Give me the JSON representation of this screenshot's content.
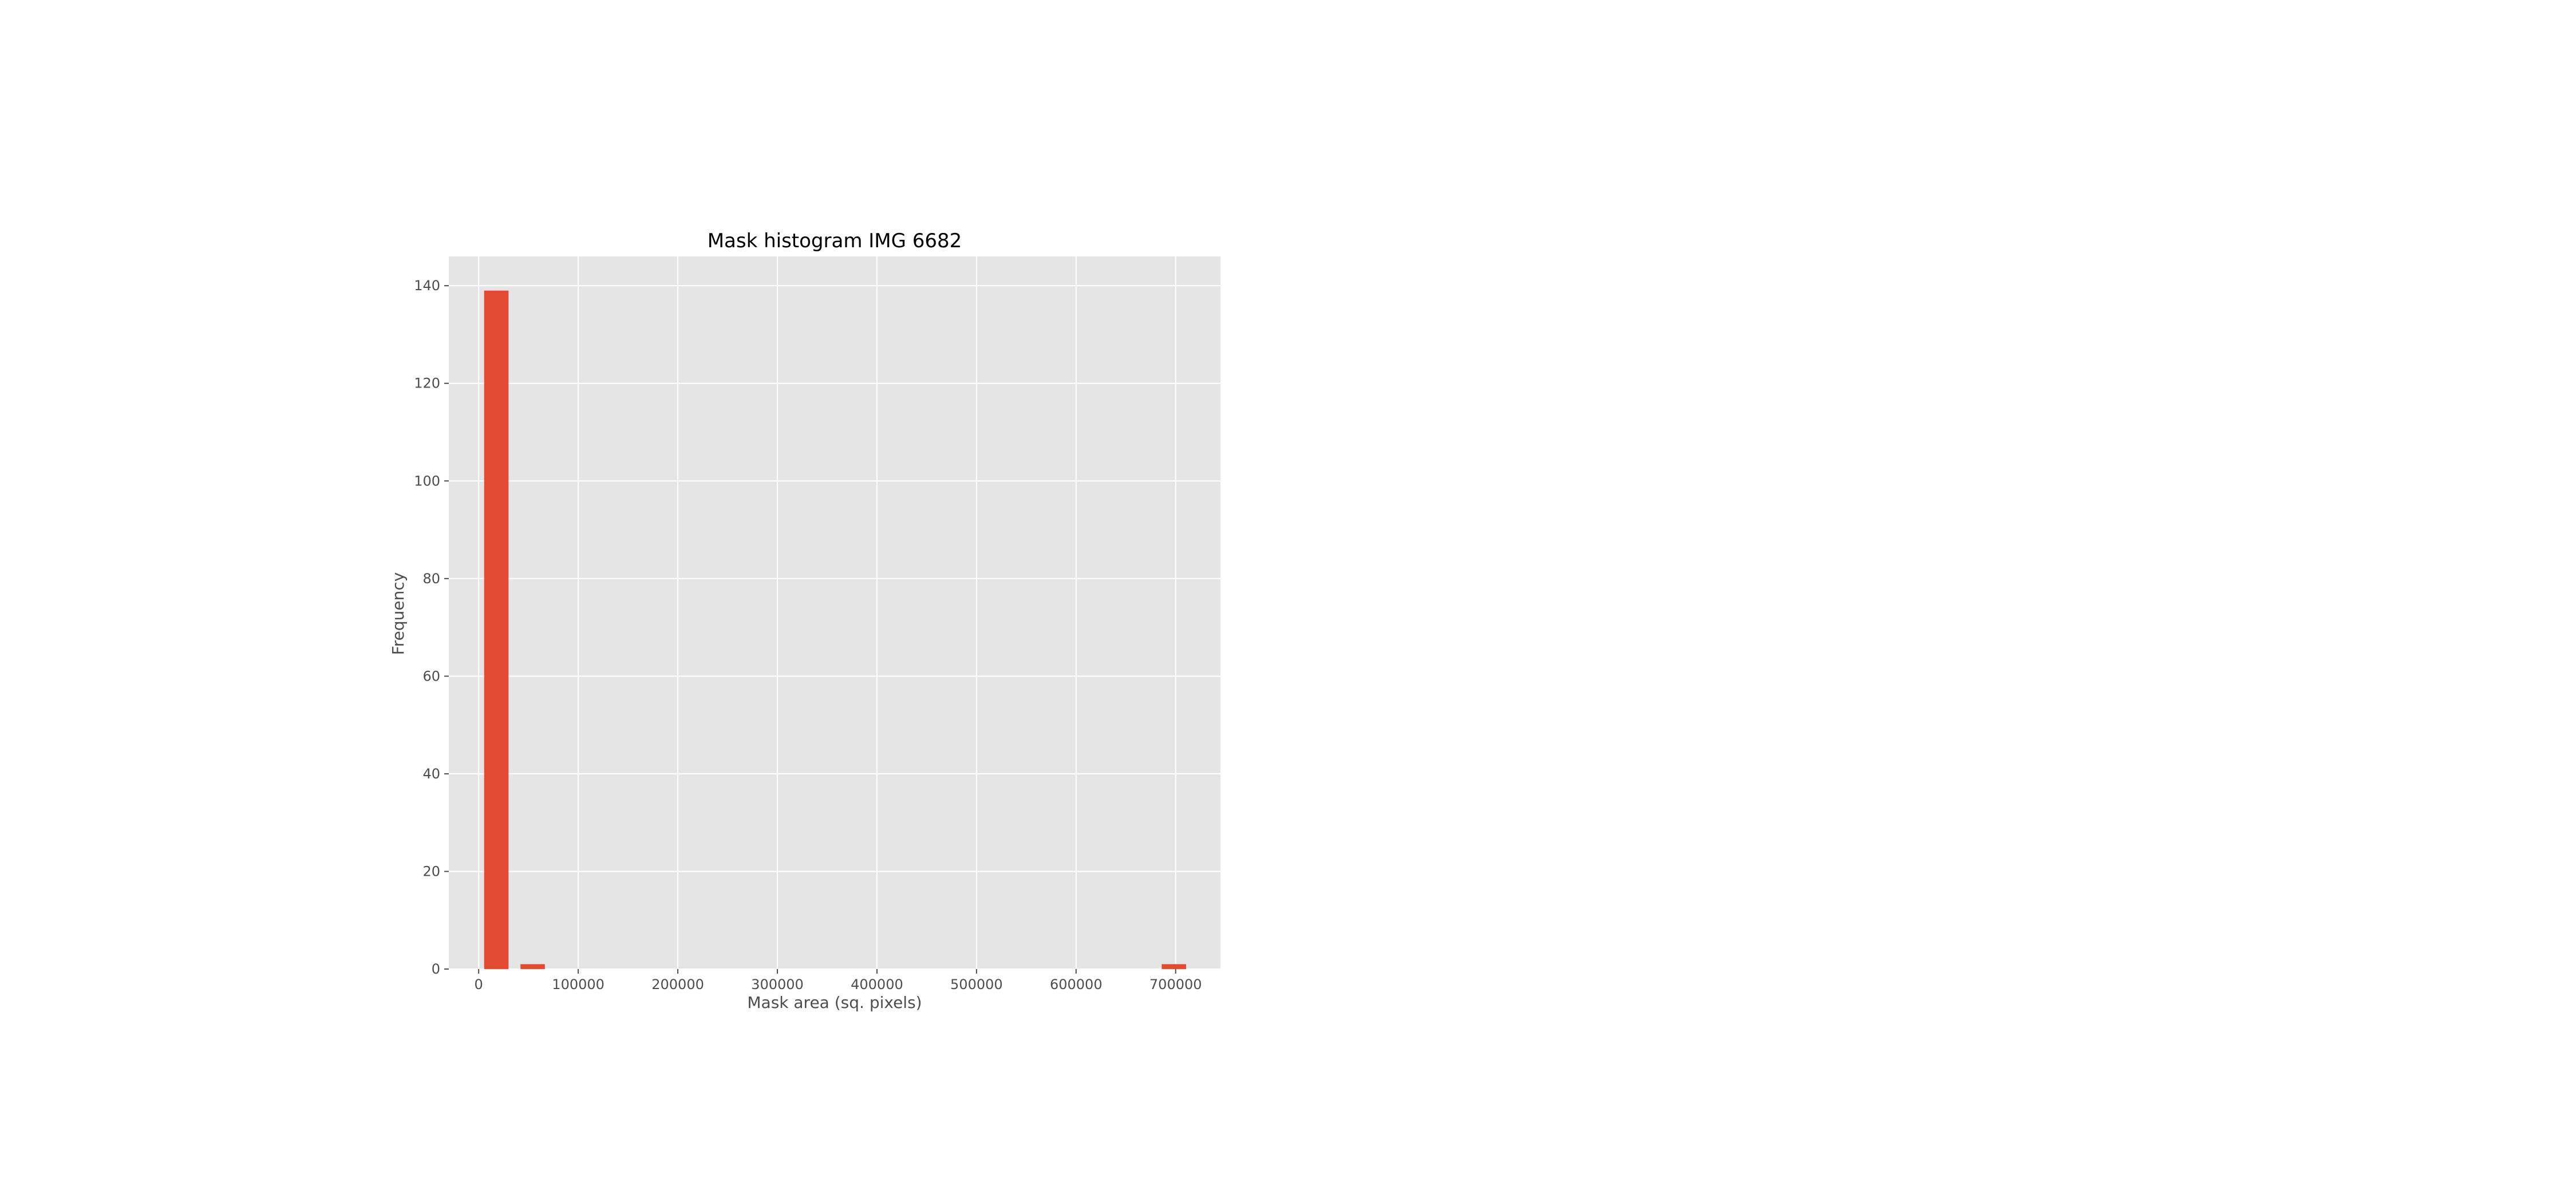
{
  "chart_data": {
    "type": "bar",
    "title": "Mask histogram IMG 6682",
    "xlabel": "Mask area (sq. pixels)",
    "ylabel": "Frequency",
    "xlim": [
      -30000,
      745000
    ],
    "ylim": [
      0,
      146
    ],
    "x_ticks": [
      0,
      100000,
      200000,
      300000,
      400000,
      500000,
      600000,
      700000
    ],
    "x_tick_labels": [
      "0",
      "100000",
      "200000",
      "300000",
      "400000",
      "500000",
      "600000",
      "700000"
    ],
    "y_ticks": [
      0,
      20,
      40,
      60,
      80,
      100,
      120,
      140
    ],
    "y_tick_labels": [
      "0",
      "20",
      "40",
      "60",
      "80",
      "100",
      "120",
      "140"
    ],
    "bars": [
      {
        "x_start": 5500,
        "x_end": 30000,
        "value": 139
      },
      {
        "x_start": 42000,
        "x_end": 66500,
        "value": 1
      },
      {
        "x_start": 686000,
        "x_end": 710500,
        "value": 1
      }
    ],
    "grid": true,
    "legend": "none",
    "colors": {
      "bar": "#E24A33",
      "plot_background": "#E5E5E5",
      "grid": "#FFFFFF"
    }
  }
}
